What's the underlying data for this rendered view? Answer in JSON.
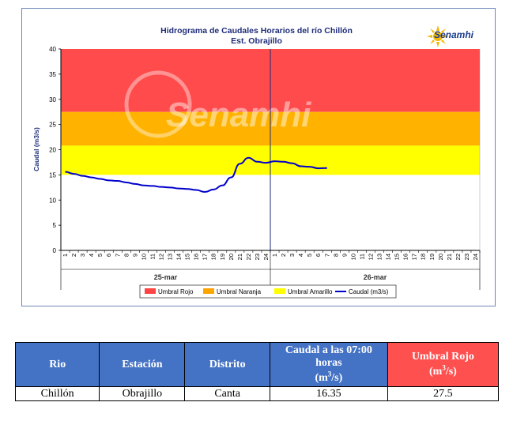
{
  "chart_data": {
    "type": "line",
    "title": "Hidrograma de Caudales Horarios del río Chillón",
    "subtitle": "Est. Obrajillo",
    "ylabel": "Caudal  (m3/s)",
    "xlabel": "",
    "ylim": [
      0,
      40
    ],
    "yticks": [
      "0",
      "5",
      "10",
      "15",
      "20",
      "25",
      "30",
      "35",
      "40"
    ],
    "xticks_day1": [
      "1",
      "2",
      "3",
      "4",
      "5",
      "6",
      "7",
      "8",
      "9",
      "10",
      "11",
      "12",
      "13",
      "14",
      "15",
      "16",
      "17",
      "18",
      "19",
      "20",
      "21",
      "22",
      "23",
      "24"
    ],
    "xticks_day2": [
      "1",
      "2",
      "3",
      "4",
      "5",
      "6",
      "7",
      "8",
      "9",
      "10",
      "11",
      "12",
      "13",
      "14",
      "15",
      "16",
      "17",
      "18",
      "19",
      "20",
      "21",
      "22",
      "23",
      "24"
    ],
    "day_labels": [
      "25-mar",
      "26-mar"
    ],
    "thresholds": {
      "amarillo": [
        15,
        20.8
      ],
      "naranja": [
        20.8,
        27.5
      ],
      "rojo": [
        27.5,
        40
      ]
    },
    "series": [
      {
        "name": "Caudal (m3/s)",
        "color": "#0000cc",
        "x": [
          1,
          2,
          3,
          4,
          5,
          6,
          7,
          8,
          9,
          10,
          11,
          12,
          13,
          14,
          15,
          16,
          17,
          18,
          19,
          20,
          21,
          22,
          23,
          24,
          25,
          26,
          27,
          28,
          29,
          30,
          31
        ],
        "values": [
          15.6,
          15.2,
          14.8,
          14.5,
          14.2,
          13.9,
          13.8,
          13.5,
          13.2,
          12.9,
          12.8,
          12.6,
          12.5,
          12.3,
          12.2,
          12.0,
          11.6,
          12.1,
          12.9,
          14.5,
          17.2,
          18.4,
          17.6,
          17.4,
          17.7,
          17.6,
          17.3,
          16.7,
          16.6,
          16.3,
          16.35
        ]
      }
    ],
    "legend": [
      {
        "label": "Umbral Rojo",
        "color": "#ff4444"
      },
      {
        "label": "Umbral Naranja",
        "color": "#ffa500"
      },
      {
        "label": "Umbral Amarillo",
        "color": "#ffff00"
      },
      {
        "label": "Caudal (m3/s)",
        "color": "#0000cc"
      }
    ],
    "legend_position": "bottom",
    "grid": false,
    "watermark": "Senamhi"
  },
  "logo_text": "Senamhi",
  "table": {
    "headers": [
      "Rio",
      "Estación",
      "Distrito",
      "Caudal a las 07:00 horas",
      "Umbral Rojo"
    ],
    "units": [
      "",
      "",
      "",
      "(m3/s)",
      "(m3/s)"
    ],
    "row": [
      "Chillón",
      "Obrajillo",
      "Canta",
      "16.35",
      "27.5"
    ]
  }
}
